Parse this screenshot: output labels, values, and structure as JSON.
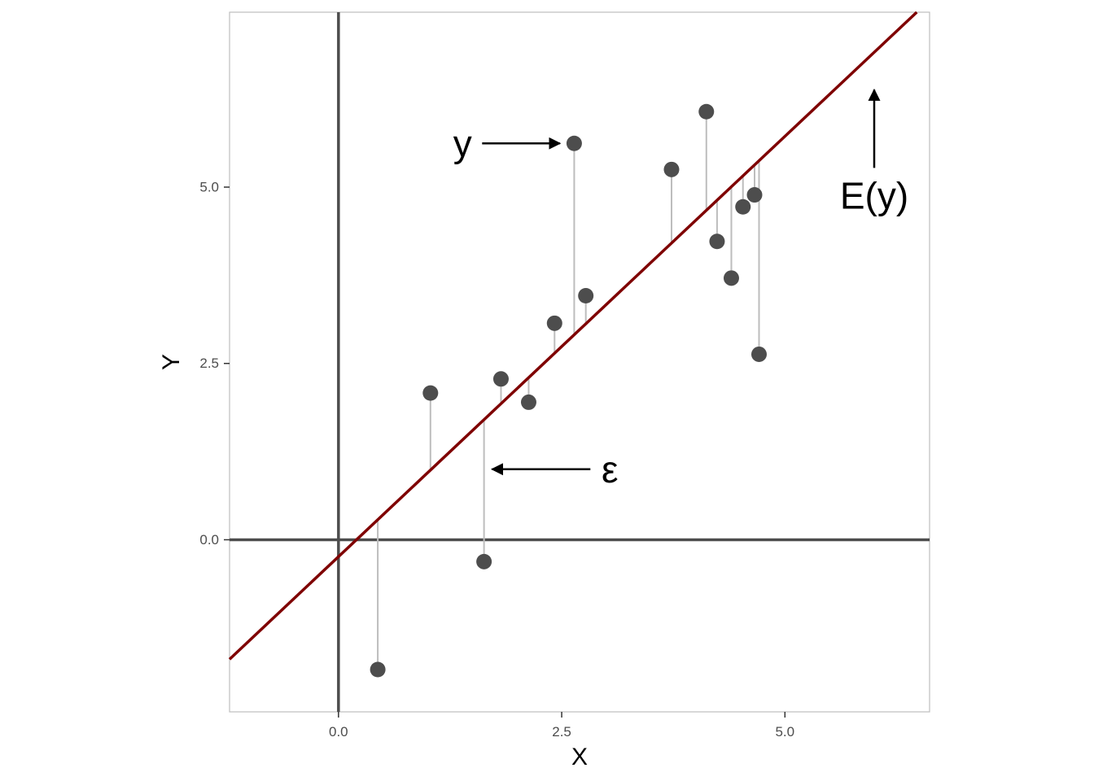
{
  "chart_data": {
    "type": "scatter",
    "title": "",
    "xlabel": "X",
    "ylabel": "Y",
    "xlim": [
      -1.22,
      6.62
    ],
    "ylim": [
      -2.44,
      7.48
    ],
    "x_ticks": [
      0.0,
      2.5,
      5.0
    ],
    "x_tick_labels": [
      "0.0",
      "2.5",
      "5.0"
    ],
    "y_ticks": [
      0.0,
      2.5,
      5.0
    ],
    "y_tick_labels": [
      "0.0",
      "2.5",
      "5.0"
    ],
    "grid": false,
    "panel_border": true,
    "reference_lines": {
      "x": 0,
      "y": 0,
      "color": "#4d4d4d"
    },
    "regression_line": {
      "slope": 1.192,
      "intercept": -0.24,
      "color": "#7f0000"
    },
    "residual_segment_color": "#bdbdbd",
    "point_color": "#4d4d4d",
    "points": [
      {
        "x": 0.44,
        "y": -1.84
      },
      {
        "x": 1.03,
        "y": 2.08
      },
      {
        "x": 1.63,
        "y": -0.31
      },
      {
        "x": 1.82,
        "y": 2.28
      },
      {
        "x": 2.13,
        "y": 1.95
      },
      {
        "x": 2.42,
        "y": 3.07
      },
      {
        "x": 2.64,
        "y": 5.62
      },
      {
        "x": 2.77,
        "y": 3.46
      },
      {
        "x": 3.73,
        "y": 5.25
      },
      {
        "x": 4.12,
        "y": 6.07
      },
      {
        "x": 4.24,
        "y": 4.23
      },
      {
        "x": 4.4,
        "y": 3.71
      },
      {
        "x": 4.53,
        "y": 4.72
      },
      {
        "x": 4.66,
        "y": 4.89
      },
      {
        "x": 4.71,
        "y": 2.63
      }
    ],
    "annotations": [
      {
        "text": "y",
        "x": 1.39,
        "y": 5.62,
        "arrow_to": {
          "x": 2.48,
          "y": 5.62
        }
      },
      {
        "text": "ε",
        "x": 3.04,
        "y": 1.0,
        "arrow_to": {
          "x": 1.72,
          "y": 1.0
        }
      },
      {
        "text": "E(y)",
        "x": 6.0,
        "y": 4.88,
        "arrow_to": {
          "x": 6.0,
          "y": 6.38
        }
      }
    ]
  }
}
